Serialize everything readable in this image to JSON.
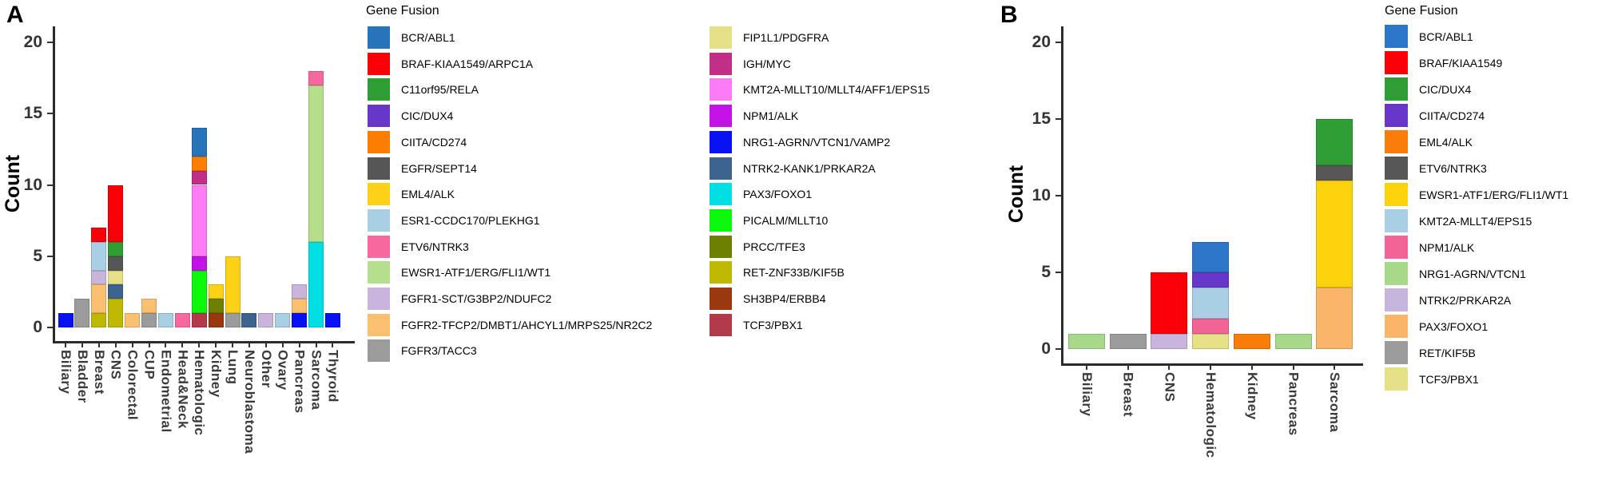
{
  "figure": {
    "background": "#ffffff",
    "panels": [
      {
        "label": "A",
        "y_title": "Count",
        "legend_title": "Gene Fusion"
      },
      {
        "label": "B",
        "y_title": "Count",
        "legend_title": "Gene Fusion"
      }
    ]
  },
  "chart_data": [
    {
      "type": "bar",
      "stacked": true,
      "panel": "A",
      "title": "",
      "xlabel": "",
      "ylabel": "Count",
      "ylim": [
        0,
        21
      ],
      "yticks": [
        0,
        5,
        10,
        15,
        20
      ],
      "grid": false,
      "legend_title": "Gene Fusion",
      "legend_position": "right",
      "legend_columns": 2,
      "stack_order": "bottom-to-top follows reverse of legend order",
      "categories": [
        "Biliary",
        "Bladder",
        "Breast",
        "CNS",
        "Colorectal",
        "CUP",
        "Endometrial",
        "Head&Neck",
        "Hematologic",
        "Kidney",
        "Lung",
        "Neuroblastoma",
        "Other",
        "Ovary",
        "Pancreas",
        "Sarcoma",
        "Thyroid"
      ],
      "totals": [
        1,
        2,
        7,
        10,
        1,
        2,
        1,
        1,
        14,
        3,
        5,
        1,
        1,
        1,
        3,
        18,
        1
      ],
      "series": [
        {
          "name": "BCR/ABL1",
          "color": "#2774BB",
          "values": [
            0,
            0,
            0,
            0,
            0,
            0,
            0,
            0,
            2,
            0,
            0,
            0,
            0,
            0,
            0,
            0,
            0
          ]
        },
        {
          "name": "BRAF-KIAA1549/ARPC1A",
          "color": "#FA0006",
          "values": [
            0,
            0,
            1,
            4,
            0,
            0,
            0,
            0,
            0,
            0,
            0,
            0,
            0,
            0,
            0,
            0,
            0
          ]
        },
        {
          "name": "C11orf95/RELA",
          "color": "#2E9E35",
          "values": [
            0,
            0,
            0,
            1,
            0,
            0,
            0,
            0,
            0,
            0,
            0,
            0,
            0,
            0,
            0,
            0,
            0
          ]
        },
        {
          "name": "CIC/DUX4",
          "color": "#6937C8",
          "values": [
            0,
            0,
            0,
            0,
            0,
            0,
            0,
            0,
            0,
            0,
            0,
            0,
            0,
            0,
            0,
            0,
            0
          ]
        },
        {
          "name": "CIITA/CD274",
          "color": "#FC7E00",
          "values": [
            0,
            0,
            0,
            0,
            0,
            0,
            0,
            0,
            1,
            0,
            0,
            0,
            0,
            0,
            0,
            0,
            0
          ]
        },
        {
          "name": "EGFR/SEPT14",
          "color": "#565656",
          "values": [
            0,
            0,
            0,
            1,
            0,
            0,
            0,
            0,
            0,
            0,
            0,
            0,
            0,
            0,
            0,
            0,
            0
          ]
        },
        {
          "name": "EML4/ALK",
          "color": "#FCD116",
          "values": [
            0,
            0,
            0,
            0,
            0,
            0,
            0,
            0,
            0,
            1,
            4,
            0,
            0,
            0,
            0,
            0,
            0
          ]
        },
        {
          "name": "ESR1-CCDC170/PLEKHG1",
          "color": "#A9CFE5",
          "values": [
            0,
            0,
            2,
            0,
            0,
            0,
            1,
            0,
            0,
            0,
            0,
            0,
            0,
            1,
            0,
            0,
            0
          ]
        },
        {
          "name": "ETV6/NTRK3",
          "color": "#F8679E",
          "values": [
            0,
            0,
            0,
            0,
            0,
            0,
            0,
            1,
            0,
            0,
            0,
            0,
            0,
            0,
            0,
            1,
            0
          ]
        },
        {
          "name": "EWSR1-ATF1/ERG/FLI1/WT1",
          "color": "#B5DE8D",
          "values": [
            0,
            0,
            0,
            0,
            0,
            0,
            0,
            0,
            0,
            0,
            0,
            0,
            0,
            0,
            0,
            11,
            0
          ]
        },
        {
          "name": "FGFR1-SCT/G3BP2/NDUFC2",
          "color": "#C9B5DC",
          "values": [
            0,
            0,
            1,
            0,
            0,
            0,
            0,
            0,
            0,
            0,
            0,
            0,
            1,
            0,
            1,
            0,
            0
          ]
        },
        {
          "name": "FGFR2-TFCP2/DMBT1/AHCYL1/MRPS25/NR2C2",
          "color": "#FBBF70",
          "values": [
            0,
            0,
            2,
            0,
            1,
            1,
            0,
            0,
            0,
            0,
            0,
            0,
            0,
            0,
            1,
            0,
            0
          ]
        },
        {
          "name": "FGFR3/TACC3",
          "color": "#9B9B9B",
          "values": [
            0,
            2,
            0,
            0,
            0,
            1,
            0,
            0,
            0,
            0,
            1,
            0,
            0,
            0,
            0,
            0,
            0
          ]
        },
        {
          "name": "FIP1L1/PDGFRA",
          "color": "#E5E186",
          "values": [
            0,
            0,
            0,
            1,
            0,
            0,
            0,
            0,
            0,
            0,
            0,
            0,
            0,
            0,
            0,
            0,
            0
          ]
        },
        {
          "name": "IGH/MYC",
          "color": "#C02E86",
          "values": [
            0,
            0,
            0,
            0,
            0,
            0,
            0,
            0,
            1,
            0,
            0,
            0,
            0,
            0,
            0,
            0,
            0
          ]
        },
        {
          "name": "KMT2A-MLLT10/MLLT4/AFF1/EPS15",
          "color": "#FA7DF5",
          "values": [
            0,
            0,
            0,
            0,
            0,
            0,
            0,
            0,
            5,
            0,
            0,
            0,
            0,
            0,
            0,
            0,
            0
          ]
        },
        {
          "name": "NPM1/ALK",
          "color": "#C212E6",
          "values": [
            0,
            0,
            0,
            0,
            0,
            0,
            0,
            0,
            1,
            0,
            0,
            0,
            0,
            0,
            0,
            0,
            0
          ]
        },
        {
          "name": "NRG1-AGRN/VTCN1/VAMP2",
          "color": "#0711F2",
          "values": [
            1,
            0,
            0,
            0,
            0,
            0,
            0,
            0,
            0,
            0,
            0,
            0,
            0,
            0,
            1,
            0,
            1
          ]
        },
        {
          "name": "NTRK2-KANK1/PRKAR2A",
          "color": "#3D648E",
          "values": [
            0,
            0,
            0,
            1,
            0,
            0,
            0,
            0,
            0,
            0,
            0,
            1,
            0,
            0,
            0,
            0,
            0
          ]
        },
        {
          "name": "PAX3/FOXO1",
          "color": "#00E0E4",
          "values": [
            0,
            0,
            0,
            0,
            0,
            0,
            0,
            0,
            0,
            0,
            0,
            0,
            0,
            0,
            0,
            6,
            0
          ]
        },
        {
          "name": "PICALM/MLLT10",
          "color": "#0BF70B",
          "values": [
            0,
            0,
            0,
            0,
            0,
            0,
            0,
            0,
            3,
            0,
            0,
            0,
            0,
            0,
            0,
            0,
            0
          ]
        },
        {
          "name": "PRCC/TFE3",
          "color": "#6E8000",
          "values": [
            0,
            0,
            0,
            0,
            0,
            0,
            0,
            0,
            0,
            1,
            0,
            0,
            0,
            0,
            0,
            0,
            0
          ]
        },
        {
          "name": "RET-ZNF33B/KIF5B",
          "color": "#BEB900",
          "values": [
            0,
            0,
            1,
            2,
            0,
            0,
            0,
            0,
            0,
            0,
            0,
            0,
            0,
            0,
            0,
            0,
            0
          ]
        },
        {
          "name": "SH3BP4/ERBB4",
          "color": "#99380E",
          "values": [
            0,
            0,
            0,
            0,
            0,
            0,
            0,
            0,
            0,
            1,
            0,
            0,
            0,
            0,
            0,
            0,
            0
          ]
        },
        {
          "name": "TCF3/PBX1",
          "color": "#B23A4A",
          "values": [
            0,
            0,
            0,
            0,
            0,
            0,
            0,
            0,
            1,
            0,
            0,
            0,
            0,
            0,
            0,
            0,
            0
          ]
        }
      ]
    },
    {
      "type": "bar",
      "stacked": true,
      "panel": "B",
      "title": "",
      "xlabel": "",
      "ylabel": "Count",
      "ylim": [
        0,
        21
      ],
      "yticks": [
        0,
        5,
        10,
        15,
        20
      ],
      "grid": false,
      "legend_title": "Gene Fusion",
      "legend_position": "right",
      "legend_columns": 1,
      "stack_order": "bottom-to-top follows reverse of legend order",
      "categories": [
        "Biliary",
        "Breast",
        "CNS",
        "Hematologic",
        "Kidney",
        "Pancreas",
        "Sarcoma"
      ],
      "totals": [
        1,
        1,
        5,
        7,
        1,
        1,
        15
      ],
      "series": [
        {
          "name": "BCR/ABL1",
          "color": "#2E77C8",
          "values": [
            0,
            0,
            0,
            2,
            0,
            0,
            0
          ]
        },
        {
          "name": "BRAF/KIAA1549",
          "color": "#FB0007",
          "values": [
            0,
            0,
            4,
            0,
            0,
            0,
            0
          ]
        },
        {
          "name": "CIC/DUX4",
          "color": "#2F9E35",
          "values": [
            0,
            0,
            0,
            0,
            0,
            0,
            3
          ]
        },
        {
          "name": "CIITA/CD274",
          "color": "#6937C8",
          "values": [
            0,
            0,
            0,
            1,
            0,
            0,
            0
          ]
        },
        {
          "name": "EML4/ALK",
          "color": "#FB7D09",
          "values": [
            0,
            0,
            0,
            0,
            1,
            0,
            0
          ]
        },
        {
          "name": "ETV6/NTRK3",
          "color": "#575757",
          "values": [
            0,
            0,
            0,
            0,
            0,
            0,
            1
          ]
        },
        {
          "name": "EWSR1-ATF1/ERG/FLI1/WT1",
          "color": "#FBD20C",
          "values": [
            0,
            0,
            0,
            0,
            0,
            0,
            7
          ]
        },
        {
          "name": "KMT2A-MLLT4/EPS15",
          "color": "#AACFE4",
          "values": [
            0,
            0,
            0,
            2,
            0,
            0,
            0
          ]
        },
        {
          "name": "NPM1/ALK",
          "color": "#F46397",
          "values": [
            0,
            0,
            0,
            1,
            0,
            0,
            0
          ]
        },
        {
          "name": "NRG1-AGRN/VTCN1",
          "color": "#A8D889",
          "values": [
            1,
            0,
            0,
            0,
            0,
            1,
            0
          ]
        },
        {
          "name": "NTRK2/PRKAR2A",
          "color": "#C7B5DE",
          "values": [
            0,
            0,
            1,
            0,
            0,
            0,
            0
          ]
        },
        {
          "name": "PAX3/FOXO1",
          "color": "#FAB568",
          "values": [
            0,
            0,
            0,
            0,
            0,
            0,
            4
          ]
        },
        {
          "name": "RET/KIF5B",
          "color": "#9B9B9B",
          "values": [
            0,
            1,
            0,
            0,
            0,
            0,
            0
          ]
        },
        {
          "name": "TCF3/PBX1",
          "color": "#E5E186",
          "values": [
            0,
            0,
            0,
            1,
            0,
            0,
            0
          ]
        }
      ]
    }
  ]
}
